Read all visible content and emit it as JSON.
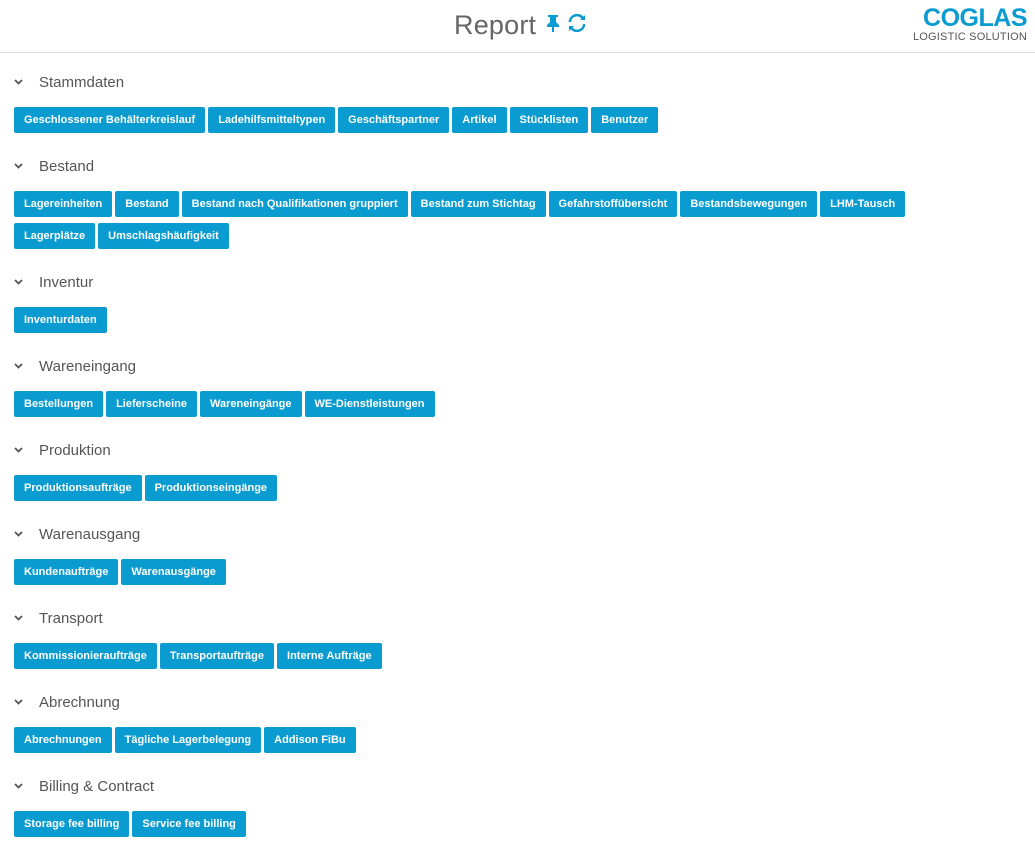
{
  "header": {
    "title": "Report",
    "pin_icon": "pin-icon",
    "refresh_icon": "refresh-icon",
    "logo_main": "COGLAS",
    "logo_sub": "LOGISTIC SOLUTION"
  },
  "colors": {
    "accent": "#0a9bd0"
  },
  "sections": [
    {
      "title": "Stammdaten",
      "buttons": [
        "Geschlossener Behälterkreislauf",
        "Ladehilfsmitteltypen",
        "Geschäftspartner",
        "Artikel",
        "Stücklisten",
        "Benutzer"
      ]
    },
    {
      "title": "Bestand",
      "buttons": [
        "Lagereinheiten",
        "Bestand",
        "Bestand nach Qualifikationen gruppiert",
        "Bestand zum Stichtag",
        "Gefahrstoffübersicht",
        "Bestandsbewegungen",
        "LHM-Tausch",
        "Lagerplätze",
        "Umschlagshäufigkeit"
      ]
    },
    {
      "title": "Inventur",
      "buttons": [
        "Inventurdaten"
      ]
    },
    {
      "title": "Wareneingang",
      "buttons": [
        "Bestellungen",
        "Lieferscheine",
        "Wareneingänge",
        "WE-Dienstleistungen"
      ]
    },
    {
      "title": "Produktion",
      "buttons": [
        "Produktionsaufträge",
        "Produktionseingänge"
      ]
    },
    {
      "title": "Warenausgang",
      "buttons": [
        "Kundenaufträge",
        "Warenausgänge"
      ]
    },
    {
      "title": "Transport",
      "buttons": [
        "Kommissionieraufträge",
        "Transportaufträge",
        "Interne Aufträge"
      ]
    },
    {
      "title": "Abrechnung",
      "buttons": [
        "Abrechnungen",
        "Tägliche Lagerbelegung",
        "Addison FiBu"
      ]
    },
    {
      "title": "Billing & Contract",
      "buttons": [
        "Storage fee billing",
        "Service fee billing"
      ]
    }
  ]
}
